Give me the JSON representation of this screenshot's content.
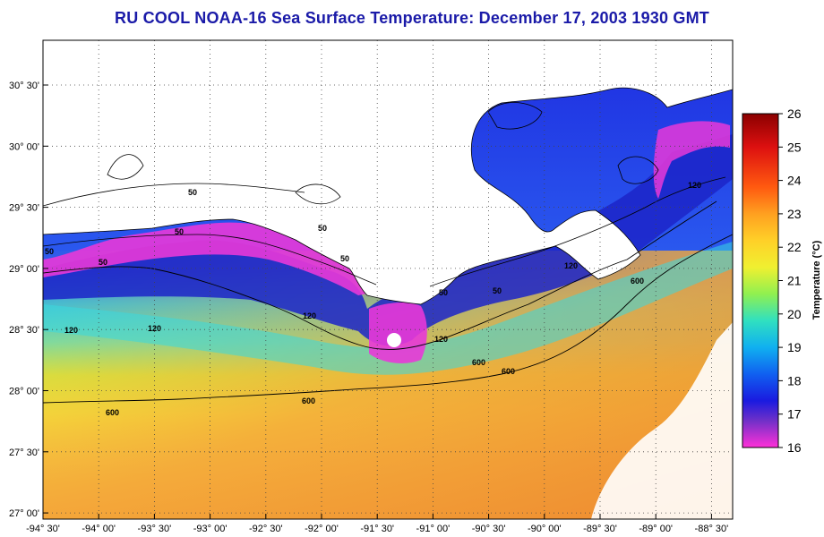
{
  "title": "RU COOL  NOAA-16  Sea Surface Temperature:  December 17, 2003 1930 GMT",
  "lat_ticks": [
    "30° 30'",
    "30° 00'",
    "29° 30'",
    "29° 00'",
    "28° 30'",
    "28° 00'",
    "27° 30'",
    "27° 00'"
  ],
  "lon_ticks": [
    "-94° 30'",
    "-94° 00'",
    "-93° 30'",
    "-93° 00'",
    "-92° 30'",
    "-92° 00'",
    "-91° 30'",
    "-91° 00'",
    "-90° 30'",
    "-90° 00'",
    "-89° 30'",
    "-89° 00'",
    "-88° 30'"
  ],
  "colorbar": {
    "ticks": [
      "26",
      "25",
      "24",
      "23",
      "22",
      "21",
      "20",
      "19",
      "18",
      "17",
      "16"
    ],
    "label": "Temperature (°C)"
  },
  "contour_labels": {
    "c50": "50",
    "c120": "120",
    "c600": "600"
  },
  "colors": {
    "title": "#1a1aa8",
    "land": "#ffffff",
    "water_warm": "#f5a33a",
    "water_cool": "#2233dd",
    "coldest": "#ff33cc"
  }
}
